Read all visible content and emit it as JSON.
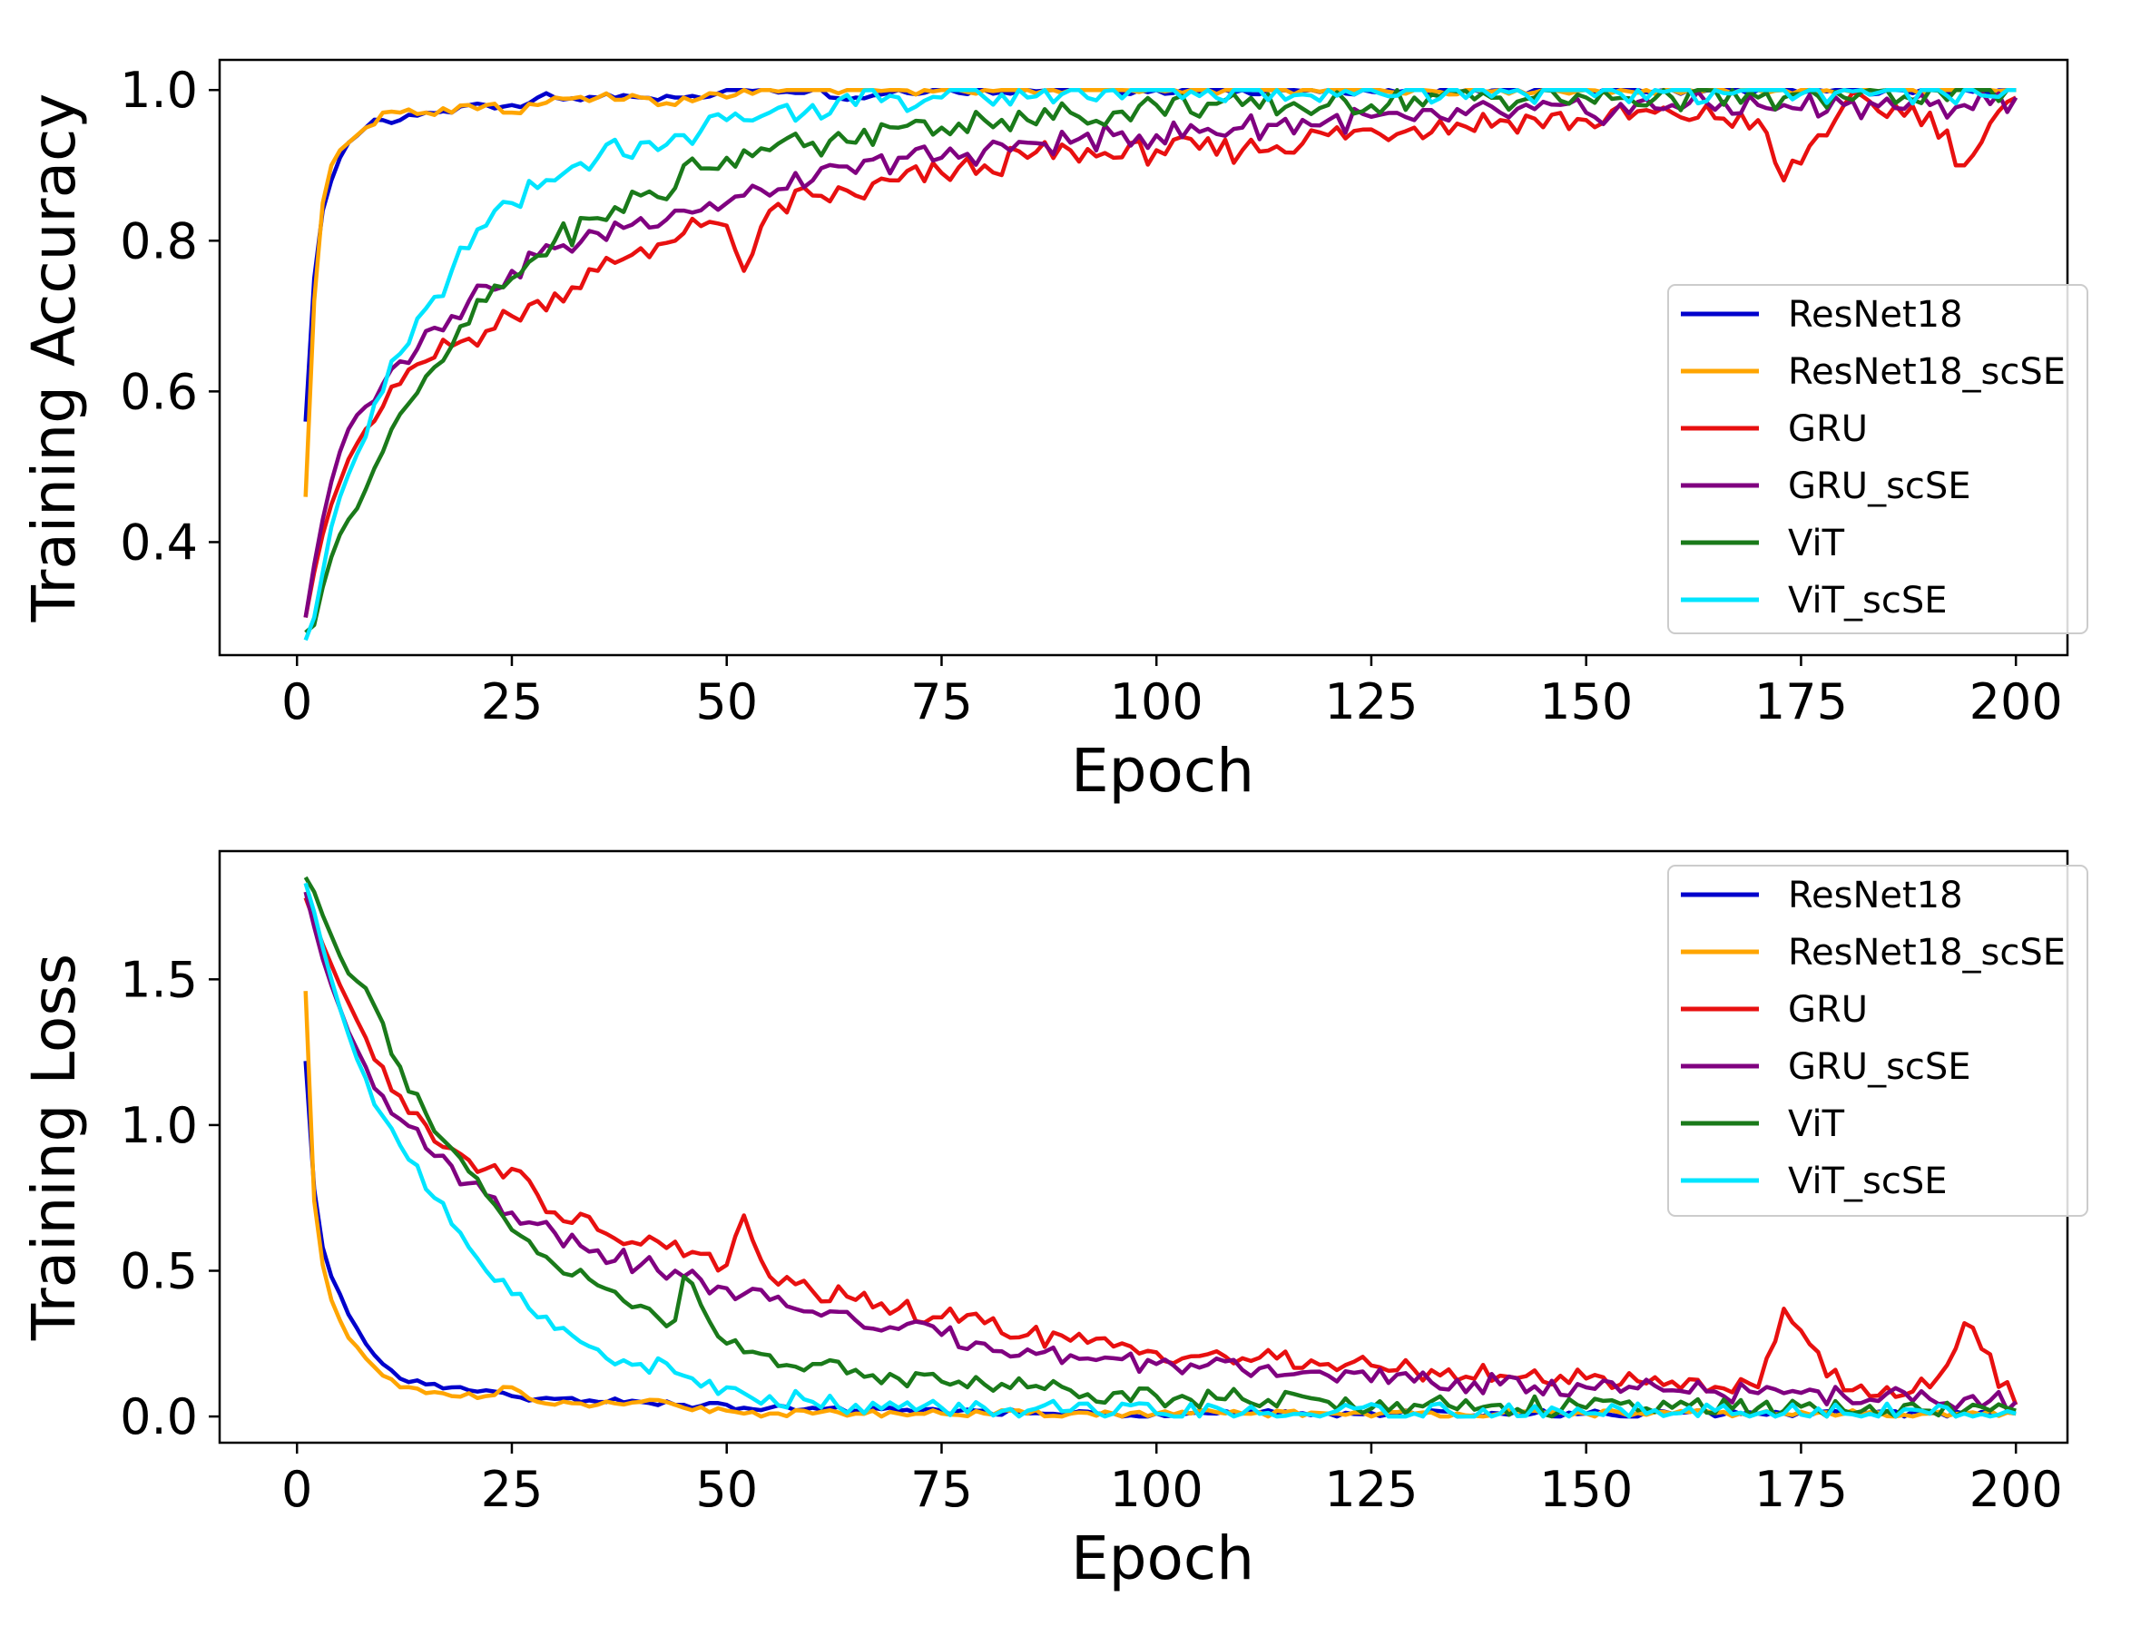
{
  "chart_data": [
    {
      "type": "line",
      "xlabel": "Epoch",
      "ylabel": "Training Accuracy",
      "xlim": [
        -9,
        206
      ],
      "ylim": [
        0.25,
        1.04
      ],
      "xticks": [
        0,
        25,
        50,
        75,
        100,
        125,
        150,
        175,
        200
      ],
      "xtick_labels": [
        "0",
        "25",
        "50",
        "75",
        "100",
        "125",
        "150",
        "175",
        "200"
      ],
      "yticks": [
        0.4,
        0.6,
        0.8,
        1.0
      ],
      "ytick_labels": [
        "0.4",
        "0.6",
        "0.8",
        "1.0"
      ],
      "legend": "center-right",
      "x": [
        1,
        2,
        3,
        4,
        5,
        6,
        8,
        10,
        12,
        15,
        18,
        20,
        22,
        25,
        28,
        30,
        35,
        40,
        44,
        45,
        50,
        52,
        55,
        60,
        65,
        70,
        75,
        80,
        85,
        90,
        95,
        100,
        110,
        120,
        130,
        140,
        150,
        160,
        170,
        173,
        180,
        190,
        194,
        200
      ],
      "series": [
        {
          "name": "ResNet18",
          "color": "#0000cc",
          "values": [
            0.56,
            0.75,
            0.84,
            0.88,
            0.91,
            0.93,
            0.95,
            0.96,
            0.96,
            0.97,
            0.97,
            0.98,
            0.98,
            0.98,
            0.99,
            0.99,
            0.99,
            0.99,
            0.99,
            0.99,
            1.0,
            1.0,
            1.0,
            1.0,
            0.99,
            1.0,
            1.0,
            1.0,
            1.0,
            1.0,
            1.0,
            1.0,
            1.0,
            1.0,
            1.0,
            1.0,
            1.0,
            1.0,
            1.0,
            1.0,
            1.0,
            1.0,
            1.0,
            1.0
          ]
        },
        {
          "name": "ResNet18_scSE",
          "color": "#ffa500",
          "values": [
            0.46,
            0.72,
            0.85,
            0.9,
            0.92,
            0.93,
            0.95,
            0.97,
            0.97,
            0.97,
            0.97,
            0.98,
            0.98,
            0.97,
            0.98,
            0.99,
            0.99,
            0.99,
            0.98,
            0.99,
            0.99,
            1.0,
            1.0,
            1.0,
            1.0,
            1.0,
            1.0,
            1.0,
            1.0,
            1.0,
            1.0,
            1.0,
            1.0,
            1.0,
            1.0,
            1.0,
            1.0,
            1.0,
            1.0,
            1.0,
            1.0,
            1.0,
            1.0,
            1.0
          ]
        },
        {
          "name": "GRU",
          "color": "#e81010",
          "values": [
            0.3,
            0.36,
            0.41,
            0.45,
            0.48,
            0.51,
            0.55,
            0.58,
            0.61,
            0.64,
            0.66,
            0.67,
            0.68,
            0.7,
            0.72,
            0.73,
            0.76,
            0.79,
            0.8,
            0.81,
            0.82,
            0.76,
            0.84,
            0.86,
            0.86,
            0.88,
            0.89,
            0.9,
            0.91,
            0.92,
            0.91,
            0.92,
            0.92,
            0.94,
            0.95,
            0.96,
            0.96,
            0.97,
            0.96,
            0.88,
            0.98,
            0.97,
            0.9,
            0.99
          ]
        },
        {
          "name": "GRU_scSE",
          "color": "#800080",
          "values": [
            0.3,
            0.37,
            0.43,
            0.48,
            0.52,
            0.55,
            0.58,
            0.61,
            0.64,
            0.68,
            0.7,
            0.72,
            0.74,
            0.76,
            0.78,
            0.79,
            0.81,
            0.83,
            0.84,
            0.84,
            0.85,
            0.86,
            0.86,
            0.88,
            0.89,
            0.91,
            0.91,
            0.92,
            0.93,
            0.93,
            0.94,
            0.94,
            0.95,
            0.96,
            0.96,
            0.97,
            0.97,
            0.98,
            0.98,
            0.98,
            0.98,
            0.98,
            0.98,
            0.99
          ]
        },
        {
          "name": "ViT",
          "color": "#1a7a1a",
          "values": [
            0.28,
            0.29,
            0.34,
            0.38,
            0.41,
            0.43,
            0.47,
            0.52,
            0.57,
            0.62,
            0.66,
            0.69,
            0.72,
            0.75,
            0.78,
            0.8,
            0.83,
            0.86,
            0.87,
            0.9,
            0.91,
            0.92,
            0.92,
            0.93,
            0.93,
            0.95,
            0.95,
            0.96,
            0.96,
            0.97,
            0.97,
            0.98,
            0.98,
            0.98,
            0.99,
            0.99,
            0.99,
            0.99,
            0.99,
            0.99,
            0.99,
            1.0,
            1.0,
            1.0
          ]
        },
        {
          "name": "ViT_scSE",
          "color": "#00e5ff",
          "values": [
            0.27,
            0.3,
            0.36,
            0.42,
            0.46,
            0.49,
            0.54,
            0.6,
            0.65,
            0.71,
            0.76,
            0.79,
            0.82,
            0.85,
            0.87,
            0.88,
            0.91,
            0.93,
            0.94,
            0.94,
            0.96,
            0.96,
            0.97,
            0.98,
            0.98,
            0.99,
            0.99,
            0.99,
            0.99,
            1.0,
            1.0,
            1.0,
            1.0,
            1.0,
            1.0,
            1.0,
            1.0,
            1.0,
            1.0,
            1.0,
            1.0,
            1.0,
            1.0,
            1.0
          ]
        }
      ]
    },
    {
      "type": "line",
      "xlabel": "Epoch",
      "ylabel": "Training Loss",
      "xlim": [
        -9,
        206
      ],
      "ylim": [
        -0.09,
        1.94
      ],
      "xticks": [
        0,
        25,
        50,
        75,
        100,
        125,
        150,
        175,
        200
      ],
      "xtick_labels": [
        "0",
        "25",
        "50",
        "75",
        "100",
        "125",
        "150",
        "175",
        "200"
      ],
      "yticks": [
        0.0,
        0.5,
        1.0,
        1.5
      ],
      "ytick_labels": [
        "0.0",
        "0.5",
        "1.0",
        "1.5"
      ],
      "legend": "top-right",
      "x": [
        1,
        2,
        3,
        4,
        5,
        6,
        8,
        10,
        12,
        15,
        18,
        20,
        22,
        25,
        28,
        30,
        35,
        40,
        44,
        45,
        50,
        52,
        55,
        60,
        65,
        70,
        75,
        80,
        85,
        90,
        95,
        100,
        110,
        120,
        130,
        140,
        150,
        160,
        170,
        173,
        180,
        190,
        194,
        200
      ],
      "series": [
        {
          "name": "ResNet18",
          "color": "#0000cc",
          "values": [
            1.22,
            0.78,
            0.58,
            0.48,
            0.42,
            0.35,
            0.25,
            0.18,
            0.13,
            0.11,
            0.1,
            0.09,
            0.09,
            0.07,
            0.06,
            0.06,
            0.05,
            0.05,
            0.04,
            0.04,
            0.04,
            0.03,
            0.03,
            0.03,
            0.02,
            0.02,
            0.02,
            0.02,
            0.01,
            0.01,
            0.01,
            0.01,
            0.01,
            0.01,
            0.01,
            0.01,
            0.01,
            0.01,
            0.01,
            0.01,
            0.01,
            0.01,
            0.01,
            0.01
          ]
        },
        {
          "name": "ResNet18_scSE",
          "color": "#ffa500",
          "values": [
            1.46,
            0.74,
            0.52,
            0.4,
            0.33,
            0.27,
            0.2,
            0.14,
            0.1,
            0.08,
            0.07,
            0.08,
            0.07,
            0.1,
            0.05,
            0.04,
            0.04,
            0.05,
            0.04,
            0.03,
            0.02,
            0.01,
            0.01,
            0.01,
            0.01,
            0.01,
            0.01,
            0.01,
            0.01,
            0.01,
            0.01,
            0.01,
            0.01,
            0.01,
            0.01,
            0.01,
            0.01,
            0.01,
            0.01,
            0.01,
            0.01,
            0.01,
            0.01,
            0.01
          ]
        },
        {
          "name": "GRU",
          "color": "#e81010",
          "values": [
            1.78,
            1.7,
            1.62,
            1.55,
            1.48,
            1.42,
            1.3,
            1.2,
            1.1,
            1.0,
            0.92,
            0.88,
            0.85,
            0.85,
            0.76,
            0.7,
            0.64,
            0.59,
            0.6,
            0.55,
            0.52,
            0.69,
            0.48,
            0.43,
            0.4,
            0.37,
            0.34,
            0.32,
            0.28,
            0.26,
            0.24,
            0.22,
            0.2,
            0.18,
            0.16,
            0.14,
            0.13,
            0.12,
            0.1,
            0.37,
            0.09,
            0.1,
            0.32,
            0.04
          ]
        },
        {
          "name": "GRU_scSE",
          "color": "#800080",
          "values": [
            1.8,
            1.68,
            1.57,
            1.48,
            1.4,
            1.32,
            1.2,
            1.1,
            1.02,
            0.92,
            0.86,
            0.8,
            0.76,
            0.7,
            0.66,
            0.63,
            0.57,
            0.52,
            0.5,
            0.48,
            0.44,
            0.42,
            0.4,
            0.36,
            0.33,
            0.3,
            0.28,
            0.25,
            0.23,
            0.21,
            0.2,
            0.18,
            0.16,
            0.14,
            0.12,
            0.11,
            0.1,
            0.09,
            0.08,
            0.08,
            0.07,
            0.06,
            0.06,
            0.05
          ]
        },
        {
          "name": "ViT",
          "color": "#1a7a1a",
          "values": [
            1.85,
            1.8,
            1.72,
            1.65,
            1.58,
            1.52,
            1.47,
            1.35,
            1.2,
            1.04,
            0.92,
            0.84,
            0.76,
            0.64,
            0.56,
            0.52,
            0.45,
            0.38,
            0.33,
            0.48,
            0.25,
            0.22,
            0.21,
            0.18,
            0.16,
            0.13,
            0.12,
            0.11,
            0.1,
            0.09,
            0.08,
            0.07,
            0.06,
            0.05,
            0.04,
            0.04,
            0.03,
            0.03,
            0.03,
            0.02,
            0.02,
            0.02,
            0.02,
            0.02
          ]
        },
        {
          "name": "ViT_scSE",
          "color": "#00e5ff",
          "values": [
            1.83,
            1.73,
            1.61,
            1.5,
            1.4,
            1.31,
            1.16,
            1.03,
            0.93,
            0.78,
            0.66,
            0.58,
            0.5,
            0.42,
            0.34,
            0.3,
            0.23,
            0.18,
            0.15,
            0.14,
            0.1,
            0.08,
            0.07,
            0.05,
            0.04,
            0.03,
            0.03,
            0.03,
            0.02,
            0.02,
            0.01,
            0.01,
            0.01,
            0.01,
            0.01,
            0.01,
            0.01,
            0.01,
            0.01,
            0.01,
            0.01,
            0.01,
            0.01,
            0.01
          ]
        }
      ]
    }
  ]
}
